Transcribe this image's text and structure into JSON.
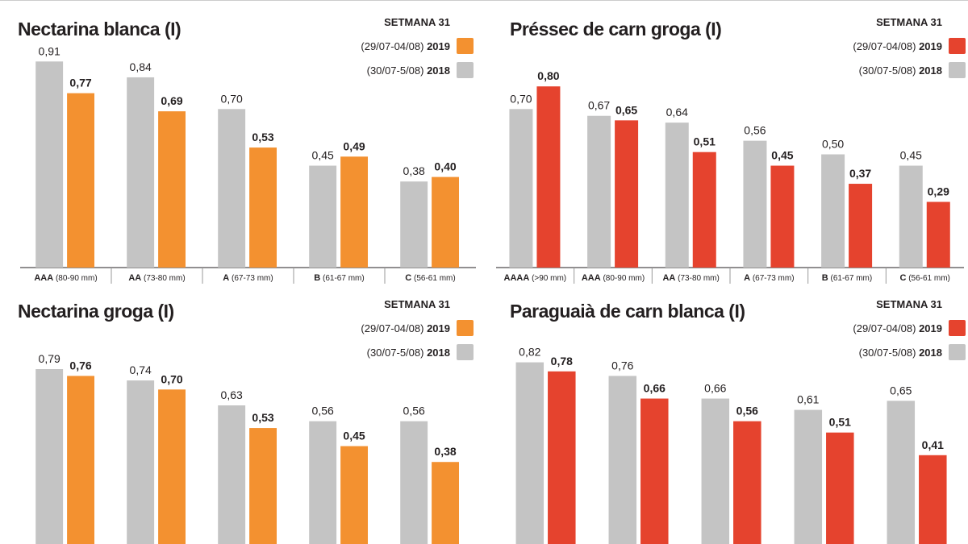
{
  "chart_data": [
    {
      "type": "bar",
      "title": "Nectarina blanca (I)",
      "legend_title": "SETMANA 31",
      "categories": [
        "AAA",
        "AA",
        "A",
        "B",
        "C"
      ],
      "category_notes": [
        "(80-90 mm)",
        "(73-80 mm)",
        "(67-73 mm)",
        "(61-67 mm)",
        "(56-61 mm)"
      ],
      "series": [
        {
          "name": "2018",
          "period": "(30/07-5/08)",
          "color": "#c4c4c4",
          "values": [
            0.91,
            0.84,
            0.7,
            0.45,
            0.38
          ],
          "value_labels": [
            "0,91",
            "0,84",
            "0,70",
            "0,45",
            "0,38"
          ]
        },
        {
          "name": "2019",
          "period": "(29/07-04/08)",
          "color": "#f39130",
          "values": [
            0.77,
            0.69,
            0.53,
            0.49,
            0.4
          ],
          "value_labels": [
            "0,77",
            "0,69",
            "0,53",
            "0,49",
            "0,40"
          ]
        }
      ]
    },
    {
      "type": "bar",
      "title": "Préssec de carn groga (I)",
      "legend_title": "SETMANA 31",
      "categories": [
        "AAAA",
        "AAA",
        "AA",
        "A",
        "B",
        "C"
      ],
      "category_notes": [
        "(>90 mm)",
        "(80-90 mm)",
        "(73-80 mm)",
        "(67-73 mm)",
        "(61-67 mm)",
        "(56-61 mm)"
      ],
      "series": [
        {
          "name": "2018",
          "period": "(30/07-5/08)",
          "color": "#c4c4c4",
          "values": [
            0.7,
            0.67,
            0.64,
            0.56,
            0.5,
            0.45
          ],
          "value_labels": [
            "0,70",
            "0,67",
            "0,64",
            "0,56",
            "0,50",
            "0,45"
          ]
        },
        {
          "name": "2019",
          "period": "(29/07-04/08)",
          "color": "#e5432e",
          "values": [
            0.8,
            0.65,
            0.51,
            0.45,
            0.37,
            0.29
          ],
          "value_labels": [
            "0,80",
            "0,65",
            "0,51",
            "0,45",
            "0,37",
            "0,29"
          ]
        }
      ]
    },
    {
      "type": "bar",
      "title": "Nectarina groga (I)",
      "legend_title": "SETMANA 31",
      "categories": [
        null,
        null,
        null,
        null,
        null
      ],
      "series": [
        {
          "name": "2018",
          "period": "(30/07-5/08)",
          "color": "#c4c4c4",
          "values": [
            0.79,
            0.74,
            0.63,
            0.56,
            0.56
          ],
          "value_labels": [
            "0,79",
            "0,74",
            "0,63",
            "0,56",
            "0,56"
          ]
        },
        {
          "name": "2019",
          "period": "(29/07-04/08)",
          "color": "#f39130",
          "values": [
            0.76,
            0.7,
            0.53,
            0.45,
            0.38
          ],
          "value_labels": [
            "0,76",
            "0,70",
            "0,53",
            "0,45",
            "0,38"
          ]
        }
      ]
    },
    {
      "type": "bar",
      "title": "Paraguaià de carn blanca (I)",
      "legend_title": "SETMANA 31",
      "categories": [
        null,
        null,
        null,
        null,
        null
      ],
      "series": [
        {
          "name": "2018",
          "period": "(30/07-5/08)",
          "color": "#c4c4c4",
          "values": [
            0.82,
            0.76,
            0.66,
            0.61,
            0.65
          ],
          "value_labels": [
            "0,82",
            "0,76",
            "0,66",
            "0,61",
            "0,65"
          ]
        },
        {
          "name": "2019",
          "period": "(29/07-04/08)",
          "color": "#e5432e",
          "values": [
            0.78,
            0.66,
            0.56,
            0.51,
            0.41
          ],
          "value_labels": [
            "0,78",
            "0,66",
            "0,56",
            "0,51",
            "0,41"
          ]
        }
      ]
    }
  ]
}
